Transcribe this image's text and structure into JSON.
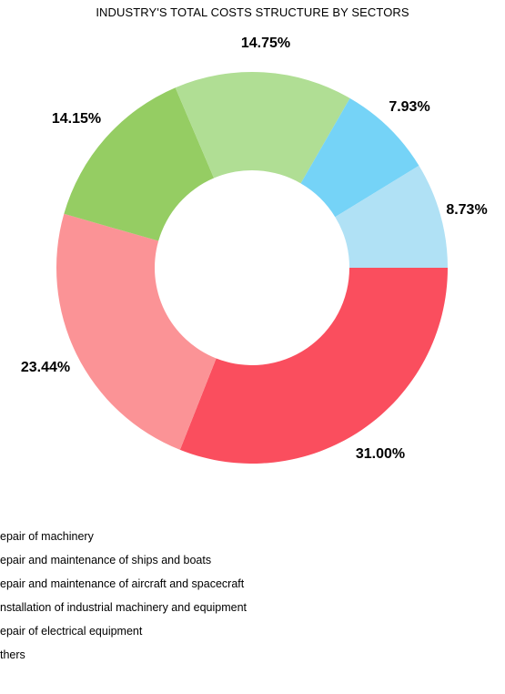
{
  "chart_data": {
    "type": "pie",
    "donut": true,
    "title": "INDUSTRY'S TOTAL COSTS STRUCTURE BY SECTORS",
    "legend_position": "bottom-left",
    "categories": [
      "Repair of machinery",
      "Repair and maintenance of ships and boats",
      "Repair and maintenance of aircraft and spacecraft",
      "Installation of industrial machinery and equipment",
      "Repair of electrical equipment",
      "Others"
    ],
    "legend_labels": [
      "epair of machinery",
      "epair and maintenance of ships and boats",
      "epair and maintenance of aircraft and spacecraft",
      "nstallation of industrial machinery and equipment",
      "epair of electrical equipment",
      "thers"
    ],
    "values": [
      31.0,
      23.44,
      14.15,
      14.75,
      7.93,
      8.73
    ],
    "labels": [
      "31.00%",
      "23.44%",
      "14.15%",
      "14.75%",
      "7.93%",
      "8.73%"
    ],
    "colors": [
      "#fa4e5e",
      "#fb9396",
      "#95cd63",
      "#b0de94",
      "#75d3f7",
      "#b0e1f5"
    ]
  }
}
